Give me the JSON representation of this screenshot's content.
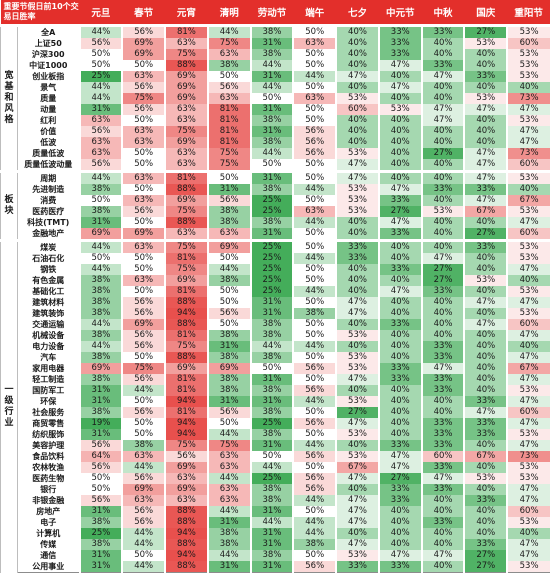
{
  "chart_data": {
    "type": "table",
    "title": "重要节假日前10个交易日胜率",
    "columns": [
      "元旦",
      "春节",
      "元宵",
      "清明",
      "劳动节",
      "端午",
      "七夕",
      "中元节",
      "中秋",
      "国庆",
      "重阳节"
    ],
    "groups": [
      {
        "name": "宽基和风格",
        "rows": [
          {
            "label": "全A",
            "values": [
              "44%",
              "56%",
              "81%",
              "44%",
              "38%",
              "50%",
              "40%",
              "33%",
              "33%",
              "27%",
              "53%"
            ]
          },
          {
            "label": "上证50",
            "values": [
              "56%",
              "69%",
              "63%",
              "75%",
              "31%",
              "63%",
              "40%",
              "33%",
              "40%",
              "53%",
              "60%"
            ]
          },
          {
            "label": "沪深300",
            "values": [
              "50%",
              "69%",
              "75%",
              "63%",
              "38%",
              "50%",
              "40%",
              "33%",
              "40%",
              "40%",
              "53%"
            ]
          },
          {
            "label": "中证1000",
            "values": [
              "50%",
              "50%",
              "88%",
              "38%",
              "44%",
              "50%",
              "40%",
              "47%",
              "33%",
              "40%",
              "53%"
            ]
          },
          {
            "label": "创业板指",
            "values": [
              "25%",
              "63%",
              "69%",
              "50%",
              "31%",
              "44%",
              "47%",
              "40%",
              "47%",
              "33%",
              "53%"
            ]
          },
          {
            "label": "景气",
            "values": [
              "44%",
              "56%",
              "69%",
              "56%",
              "44%",
              "50%",
              "40%",
              "47%",
              "40%",
              "40%",
              "40%"
            ]
          },
          {
            "label": "质量",
            "values": [
              "44%",
              "75%",
              "69%",
              "63%",
              "50%",
              "63%",
              "53%",
              "40%",
              "40%",
              "53%",
              "73%"
            ]
          },
          {
            "label": "动量",
            "values": [
              "31%",
              "56%",
              "63%",
              "81%",
              "31%",
              "50%",
              "60%",
              "53%",
              "47%",
              "47%",
              "47%"
            ]
          },
          {
            "label": "红利",
            "values": [
              "63%",
              "50%",
              "63%",
              "81%",
              "38%",
              "50%",
              "40%",
              "40%",
              "47%",
              "40%",
              "53%"
            ]
          },
          {
            "label": "价值",
            "values": [
              "56%",
              "63%",
              "75%",
              "81%",
              "31%",
              "56%",
              "40%",
              "40%",
              "40%",
              "40%",
              "47%"
            ]
          },
          {
            "label": "低波",
            "values": [
              "63%",
              "63%",
              "69%",
              "81%",
              "38%",
              "56%",
              "40%",
              "40%",
              "40%",
              "40%",
              "47%"
            ]
          },
          {
            "label": "质量低波",
            "values": [
              "63%",
              "50%",
              "63%",
              "75%",
              "44%",
              "56%",
              "53%",
              "40%",
              "27%",
              "47%",
              "73%"
            ]
          },
          {
            "label": "质量低波动量",
            "values": [
              "56%",
              "50%",
              "63%",
              "75%",
              "50%",
              "50%",
              "47%",
              "40%",
              "40%",
              "47%",
              "60%"
            ]
          }
        ]
      },
      {
        "name": "板块",
        "rows": [
          {
            "label": "周期",
            "values": [
              "44%",
              "63%",
              "81%",
              "50%",
              "31%",
              "50%",
              "47%",
              "40%",
              "40%",
              "47%",
              "53%"
            ]
          },
          {
            "label": "先进制造",
            "values": [
              "38%",
              "50%",
              "88%",
              "31%",
              "38%",
              "44%",
              "53%",
              "47%",
              "33%",
              "33%",
              "40%"
            ]
          },
          {
            "label": "消费",
            "values": [
              "50%",
              "63%",
              "69%",
              "56%",
              "25%",
              "50%",
              "53%",
              "33%",
              "40%",
              "47%",
              "67%"
            ]
          },
          {
            "label": "医药医疗",
            "values": [
              "38%",
              "56%",
              "75%",
              "38%",
              "25%",
              "63%",
              "53%",
              "27%",
              "53%",
              "67%",
              "53%"
            ]
          },
          {
            "label": "科技(TMT)",
            "values": [
              "31%",
              "50%",
              "88%",
              "38%",
              "38%",
              "44%",
              "40%",
              "47%",
              "40%",
              "40%",
              "47%"
            ]
          },
          {
            "label": "金融地产",
            "values": [
              "69%",
              "69%",
              "63%",
              "63%",
              "31%",
              "50%",
              "40%",
              "33%",
              "40%",
              "27%",
              "60%"
            ]
          }
        ]
      },
      {
        "name": "一级行业",
        "rows": [
          {
            "label": "煤炭",
            "values": [
              "44%",
              "63%",
              "75%",
              "69%",
              "25%",
              "50%",
              "33%",
              "40%",
              "40%",
              "33%",
              "53%"
            ]
          },
          {
            "label": "石油石化",
            "values": [
              "50%",
              "50%",
              "81%",
              "50%",
              "25%",
              "44%",
              "33%",
              "40%",
              "47%",
              "40%",
              "53%"
            ]
          },
          {
            "label": "钢铁",
            "values": [
              "44%",
              "50%",
              "75%",
              "44%",
              "25%",
              "50%",
              "40%",
              "33%",
              "27%",
              "40%",
              "47%"
            ]
          },
          {
            "label": "有色金属",
            "values": [
              "38%",
              "63%",
              "69%",
              "38%",
              "25%",
              "50%",
              "40%",
              "40%",
              "27%",
              "53%",
              "40%"
            ]
          },
          {
            "label": "基础化工",
            "values": [
              "38%",
              "50%",
              "81%",
              "50%",
              "25%",
              "44%",
              "40%",
              "47%",
              "33%",
              "40%",
              "53%"
            ]
          },
          {
            "label": "建筑材料",
            "values": [
              "38%",
              "56%",
              "88%",
              "50%",
              "31%",
              "50%",
              "47%",
              "40%",
              "40%",
              "47%",
              "47%"
            ]
          },
          {
            "label": "建筑装饰",
            "values": [
              "38%",
              "56%",
              "94%",
              "56%",
              "31%",
              "38%",
              "47%",
              "40%",
              "40%",
              "40%",
              "53%"
            ]
          },
          {
            "label": "交通运输",
            "values": [
              "44%",
              "69%",
              "88%",
              "50%",
              "38%",
              "50%",
              "40%",
              "33%",
              "40%",
              "47%",
              "60%"
            ]
          },
          {
            "label": "机械设备",
            "values": [
              "38%",
              "56%",
              "81%",
              "38%",
              "38%",
              "50%",
              "53%",
              "40%",
              "40%",
              "40%",
              "47%"
            ]
          },
          {
            "label": "电力设备",
            "values": [
              "44%",
              "56%",
              "75%",
              "31%",
              "44%",
              "44%",
              "40%",
              "40%",
              "33%",
              "40%",
              "40%"
            ]
          },
          {
            "label": "汽车",
            "values": [
              "38%",
              "50%",
              "88%",
              "38%",
              "38%",
              "50%",
              "53%",
              "40%",
              "33%",
              "40%",
              "47%"
            ]
          },
          {
            "label": "家用电器",
            "values": [
              "69%",
              "75%",
              "69%",
              "69%",
              "50%",
              "56%",
              "53%",
              "33%",
              "47%",
              "40%",
              "67%"
            ]
          },
          {
            "label": "轻工制造",
            "values": [
              "38%",
              "56%",
              "81%",
              "38%",
              "31%",
              "50%",
              "47%",
              "33%",
              "33%",
              "40%",
              "47%"
            ]
          },
          {
            "label": "国防军工",
            "values": [
              "31%",
              "44%",
              "81%",
              "38%",
              "38%",
              "56%",
              "40%",
              "40%",
              "33%",
              "40%",
              "53%"
            ]
          },
          {
            "label": "环保",
            "values": [
              "31%",
              "50%",
              "94%",
              "31%",
              "31%",
              "44%",
              "53%",
              "40%",
              "40%",
              "33%",
              "47%"
            ]
          },
          {
            "label": "社会服务",
            "values": [
              "38%",
              "56%",
              "81%",
              "56%",
              "38%",
              "50%",
              "27%",
              "40%",
              "40%",
              "47%",
              "60%"
            ]
          },
          {
            "label": "商贸零售",
            "values": [
              "19%",
              "50%",
              "94%",
              "50%",
              "25%",
              "56%",
              "47%",
              "40%",
              "33%",
              "33%",
              "47%"
            ]
          },
          {
            "label": "纺织服饰",
            "values": [
              "31%",
              "50%",
              "94%",
              "44%",
              "38%",
              "50%",
              "53%",
              "40%",
              "33%",
              "33%",
              "53%"
            ]
          },
          {
            "label": "美容护理",
            "values": [
              "56%",
              "38%",
              "75%",
              "75%",
              "31%",
              "44%",
              "40%",
              "33%",
              "33%",
              "40%",
              "47%"
            ]
          },
          {
            "label": "食品饮料",
            "values": [
              "64%",
              "63%",
              "56%",
              "63%",
              "50%",
              "56%",
              "53%",
              "47%",
              "60%",
              "67%",
              "73%"
            ]
          },
          {
            "label": "农林牧渔",
            "values": [
              "56%",
              "44%",
              "69%",
              "63%",
              "44%",
              "50%",
              "67%",
              "47%",
              "33%",
              "40%",
              "53%"
            ]
          },
          {
            "label": "医药生物",
            "values": [
              "50%",
              "56%",
              "63%",
              "44%",
              "25%",
              "56%",
              "47%",
              "27%",
              "47%",
              "53%",
              "53%"
            ]
          },
          {
            "label": "银行",
            "values": [
              "50%",
              "69%",
              "69%",
              "63%",
              "38%",
              "56%",
              "40%",
              "33%",
              "33%",
              "40%",
              "47%"
            ]
          },
          {
            "label": "非银金融",
            "values": [
              "56%",
              "63%",
              "63%",
              "63%",
              "38%",
              "44%",
              "47%",
              "33%",
              "40%",
              "33%",
              "47%"
            ]
          },
          {
            "label": "房地产",
            "values": [
              "31%",
              "56%",
              "88%",
              "44%",
              "31%",
              "50%",
              "47%",
              "40%",
              "40%",
              "40%",
              "60%"
            ]
          },
          {
            "label": "电子",
            "values": [
              "38%",
              "56%",
              "88%",
              "31%",
              "44%",
              "44%",
              "47%",
              "40%",
              "33%",
              "40%",
              "53%"
            ]
          },
          {
            "label": "计算机",
            "values": [
              "25%",
              "44%",
              "94%",
              "38%",
              "31%",
              "44%",
              "40%",
              "40%",
              "40%",
              "40%",
              "40%"
            ]
          },
          {
            "label": "传媒",
            "values": [
              "38%",
              "44%",
              "88%",
              "38%",
              "31%",
              "38%",
              "47%",
              "40%",
              "40%",
              "33%",
              "47%"
            ]
          },
          {
            "label": "通信",
            "values": [
              "31%",
              "50%",
              "94%",
              "44%",
              "38%",
              "50%",
              "53%",
              "47%",
              "47%",
              "27%",
              "47%"
            ]
          },
          {
            "label": "公用事业",
            "values": [
              "31%",
              "44%",
              "88%",
              "31%",
              "31%",
              "56%",
              "33%",
              "33%",
              "40%",
              "27%",
              "53%"
            ]
          }
        ]
      }
    ],
    "color_scale": {
      "low": "#44ad5a",
      "mid": "#ffffff",
      "high": "#e8504d",
      "low_value": 25,
      "mid_value": 50,
      "high_value": 90
    }
  }
}
